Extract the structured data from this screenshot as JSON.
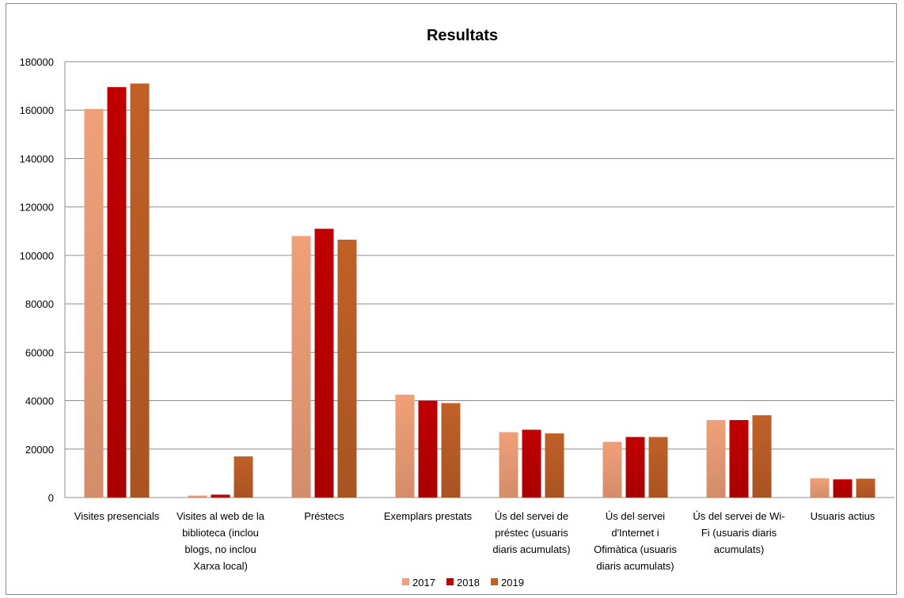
{
  "chart_data": {
    "type": "bar",
    "title": "Resultats",
    "xlabel": "",
    "ylabel": "",
    "ylim": [
      0,
      180000
    ],
    "yticks": [
      "0",
      "20000",
      "40000",
      "60000",
      "80000",
      "100000",
      "120000",
      "140000",
      "160000",
      "180000"
    ],
    "grid": true,
    "legend_position": "bottom",
    "categories": [
      [
        "Visites presencials"
      ],
      [
        "Visites al web de la",
        "biblioteca (inclou",
        "blogs, no inclou",
        "Xarxa local)"
      ],
      [
        "Préstecs"
      ],
      [
        "Exemplars prestats"
      ],
      [
        "Ús del servei de",
        "préstec (usuaris",
        "diaris acumulats)"
      ],
      [
        "Ús del servei",
        "d'Internet i",
        "Ofimàtica (usuaris",
        "diaris acumulats)"
      ],
      [
        "Ús del servei de Wi-",
        "Fi (usuaris diaris",
        "acumulats)"
      ],
      [
        "Usuaris actius"
      ]
    ],
    "series": [
      {
        "name": "2017",
        "color": "#f0a078",
        "values": [
          160500,
          800,
          108000,
          42500,
          27000,
          23000,
          32000,
          8000
        ]
      },
      {
        "name": "2018",
        "color": "#c00000",
        "values": [
          169500,
          1200,
          111000,
          40000,
          28000,
          25000,
          32000,
          7500
        ]
      },
      {
        "name": "2019",
        "color": "#c06028",
        "values": [
          171000,
          17000,
          106500,
          39000,
          26500,
          25000,
          34000,
          7800
        ]
      }
    ]
  }
}
